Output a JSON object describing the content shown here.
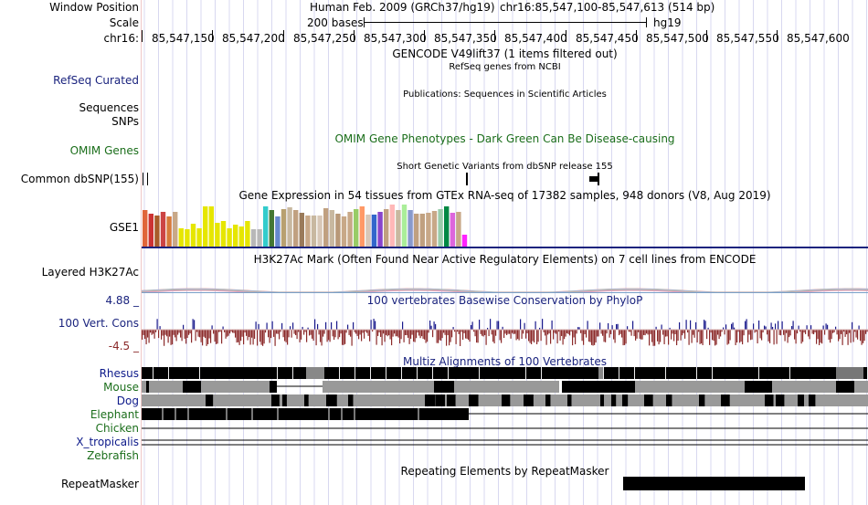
{
  "labels": {
    "window_position": "Window Position",
    "scale": "Scale",
    "chrom": "chr16:",
    "refseq": "RefSeq Curated",
    "sequences": "Sequences",
    "snps": "SNPs",
    "omim": "OMIM Genes",
    "dbsnp": "Common dbSNP(155)",
    "gse1": "GSE1",
    "h3k27ac": "Layered H3K27Ac",
    "cons_max": "4.88 _",
    "cons_label": "100 Vert. Cons",
    "cons_min": "-4.5 _",
    "repeatmasker": "RepeatMasker"
  },
  "header": {
    "assembly": "Human Feb. 2009 (GRCh37/hg19)",
    "position": "chr16:85,547,100-85,547,613 (514 bp)",
    "scale_text": "200 bases",
    "scale_db": "hg19"
  },
  "ruler": {
    "ticks": [
      "85,547,150",
      "85,547,200",
      "85,547,250",
      "85,547,300",
      "85,547,350",
      "85,547,400",
      "85,547,450",
      "85,547,500",
      "85,547,550",
      "85,547,600"
    ]
  },
  "tracks": {
    "gencode": "GENCODE V49lift37 (1 items filtered out)",
    "refseq": "RefSeq genes from NCBI",
    "publications": "Publications: Sequences in Scientific Articles",
    "omim": "OMIM Gene Phenotypes - Dark Green Can Be Disease-causing",
    "dbsnp": "Short Genetic Variants from dbSNP release 155",
    "gtex": "Gene Expression in 54 tissues from GTEx RNA-seq of 17382 samples, 948 donors (V8, Aug 2019)",
    "h3k27ac": "H3K27Ac Mark (Often Found Near Active Regulatory Elements) on 7 cell lines from ENCODE",
    "phylop": "100 vertebrates Basewise Conservation by PhyloP",
    "multiz": "Multiz Alignments of 100 Vertebrates",
    "repeatmasker": "Repeating Elements by RepeatMasker"
  },
  "species": [
    {
      "name": "Rhesus",
      "color": "#0d1a8a"
    },
    {
      "name": "Mouse",
      "color": "#1b6e1b"
    },
    {
      "name": "Dog",
      "color": "#0d1a8a"
    },
    {
      "name": "Elephant",
      "color": "#1b6e1b"
    },
    {
      "name": "Chicken",
      "color": "#1b6e1b"
    },
    {
      "name": "X_tropicalis",
      "color": "#0d1a8a"
    },
    {
      "name": "Zebrafish",
      "color": "#1b6e1b"
    }
  ],
  "colors": {
    "gridline": "#d8d8f0",
    "label_navy": "#1a237e",
    "label_green": "#1b6e1b",
    "phylop_pos": "#1a1a8c",
    "phylop_neg": "#8b2a2a"
  },
  "gtex_colors": [
    "#e0653a",
    "#cc3333",
    "#a85c2a",
    "#cc4444",
    "#d77a3a",
    "#c8a888",
    "#e6e600",
    "#e6e600",
    "#e6e600",
    "#e6e600",
    "#e6e600",
    "#e6e600",
    "#e6e600",
    "#e6e600",
    "#e6e600",
    "#e6e600",
    "#e6e600",
    "#e6e600",
    "#b8b8b8",
    "#b8b8b8",
    "#33cccc",
    "#447733",
    "#6688cc",
    "#b8a070",
    "#c8b8a0",
    "#c0a080",
    "#9a7a5a",
    "#c8a888",
    "#c8b8a0",
    "#d8c8b8",
    "#c0a080",
    "#c8b8a0",
    "#b89878",
    "#c8a888",
    "#c8a888",
    "#99cc66",
    "#ff9966",
    "#d8c8b8",
    "#3366cc",
    "#8844cc",
    "#c0a080",
    "#ffb8b8",
    "#c8b8a0",
    "#aaee99",
    "#8899cc",
    "#c0a080",
    "#c0a080",
    "#c8a888",
    "#c8a888",
    "#99ccaa",
    "#008844",
    "#dd66dd",
    "#c8a888",
    "#ff22ff"
  ],
  "gtex_heights": [
    40,
    36,
    34,
    38,
    33,
    38,
    20,
    19,
    25,
    20,
    44,
    44,
    26,
    28,
    20,
    24,
    22,
    28,
    19,
    19,
    44,
    40,
    33,
    41,
    43,
    40,
    37,
    34,
    34,
    34,
    42,
    40,
    36,
    33,
    38,
    41,
    44,
    35,
    35,
    38,
    41,
    46,
    40,
    46,
    40,
    36,
    36,
    37,
    39,
    41,
    44,
    37,
    38,
    13
  ]
}
